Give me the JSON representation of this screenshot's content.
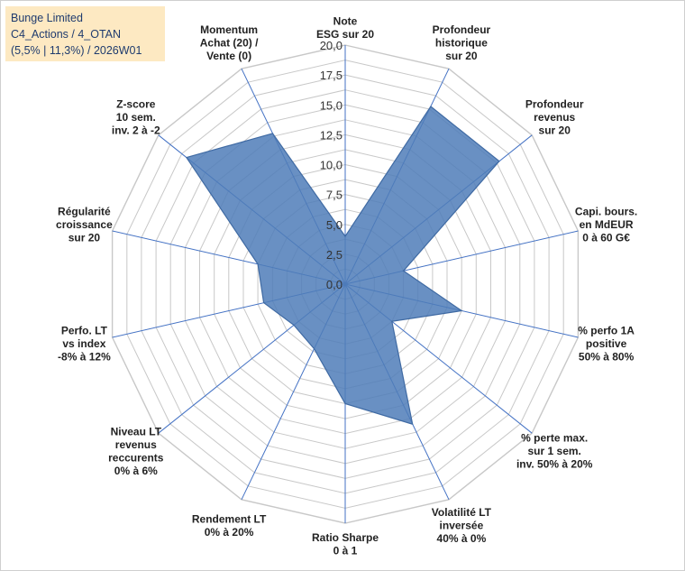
{
  "info": {
    "line1": "Bunge Limited",
    "line2": "C4_Actions / 4_OTAN",
    "line3": "(5,5% | 11,3%) / 2026W01"
  },
  "chart_data": {
    "type": "radar",
    "title": "Bunge Limited",
    "rmin": 0,
    "rmax": 20,
    "ticks": [
      "0,0",
      "2,5",
      "5,0",
      "7,5",
      "10,0",
      "12,5",
      "15,0",
      "17,5",
      "20,0"
    ],
    "tick_values": [
      0,
      2.5,
      5,
      7.5,
      10,
      12.5,
      15,
      17.5,
      20
    ],
    "axes": [
      {
        "label": [
          "Note",
          "ESG sur 20"
        ],
        "value": 4.0
      },
      {
        "label": [
          "Profondeur",
          "historique",
          "sur 20"
        ],
        "value": 16.5
      },
      {
        "label": [
          "Profondeur",
          "revenus",
          "sur 20"
        ],
        "value": 16.5
      },
      {
        "label": [
          "Capi. bours.",
          "en MdEUR",
          "0 à 60 G€"
        ],
        "value": 5.0
      },
      {
        "label": [
          "% perfo 1A",
          "positive",
          "50% à 80%"
        ],
        "value": 10.0
      },
      {
        "label": [
          "% perte max.",
          "sur 1 sem.",
          "inv. 50% à 20%"
        ],
        "value": 5.0
      },
      {
        "label": [
          "Volatilité LT",
          "inversée",
          "40% à 0%"
        ],
        "value": 13.0
      },
      {
        "label": [
          "Ratio Sharpe",
          "0 à 1"
        ],
        "value": 10.0
      },
      {
        "label": [
          "Rendement LT",
          "0% à 20%"
        ],
        "value": 6.0
      },
      {
        "label": [
          "Niveau LT",
          "revenus",
          "reccurents",
          "0% à 6%"
        ],
        "value": 5.5
      },
      {
        "label": [
          "Perfo. LT",
          "vs index",
          "-8% à 12%"
        ],
        "value": 7.0
      },
      {
        "label": [
          "Régularité",
          "croissance",
          "sur 20"
        ],
        "value": 7.5
      },
      {
        "label": [
          "Z-score",
          "10 sem.",
          "inv. 2 à -2"
        ],
        "value": 17.0
      },
      {
        "label": [
          "Momentum",
          "Achat (20) /",
          "Vente (0)"
        ],
        "value": 14.0
      }
    ],
    "colors": {
      "fill": "#4f7db8",
      "stroke": "#3f6aa3",
      "grid": "#c8c8c8",
      "axis": "#4472c4"
    }
  }
}
